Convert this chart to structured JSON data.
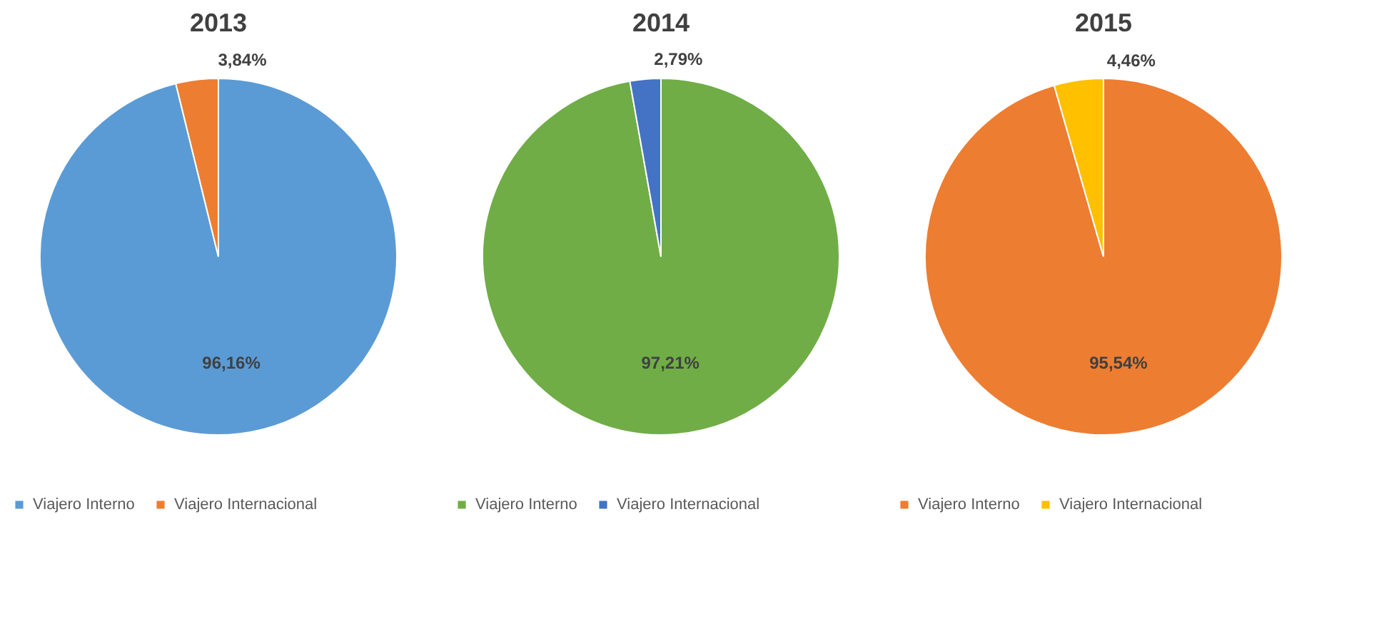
{
  "chart_data": [
    {
      "type": "pie",
      "title": "2013",
      "categories": [
        "Viajero Interno",
        "Viajero Internacional"
      ],
      "values": [
        96.16,
        3.84
      ],
      "colors": [
        "#5b9bd5",
        "#ed7d31"
      ],
      "value_labels": [
        "96,16%",
        "3,84%"
      ],
      "legend": "bottom"
    },
    {
      "type": "pie",
      "title": "2014",
      "categories": [
        "Viajero Interno",
        "Viajero Internacional"
      ],
      "values": [
        97.21,
        2.79
      ],
      "colors": [
        "#70ad47",
        "#4472c4"
      ],
      "value_labels": [
        "97,21%",
        "2,79%"
      ],
      "legend": "bottom"
    },
    {
      "type": "pie",
      "title": "2015",
      "categories": [
        "Viajero Interno",
        "Viajero Internacional"
      ],
      "values": [
        95.54,
        4.46
      ],
      "colors": [
        "#ed7d31",
        "#ffc000"
      ],
      "value_labels": [
        "95,54%",
        "4,46%"
      ],
      "legend": "bottom"
    }
  ]
}
